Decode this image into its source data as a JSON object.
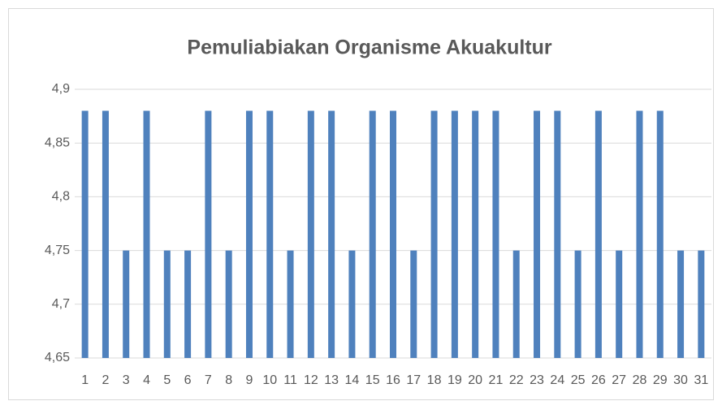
{
  "chart_data": {
    "type": "bar",
    "title": "Pemuliabiakan Organisme Akuakultur",
    "categories": [
      "1",
      "2",
      "3",
      "4",
      "5",
      "6",
      "7",
      "8",
      "9",
      "10",
      "11",
      "12",
      "13",
      "14",
      "15",
      "16",
      "17",
      "18",
      "19",
      "20",
      "21",
      "22",
      "23",
      "24",
      "25",
      "26",
      "27",
      "28",
      "29",
      "30",
      "31"
    ],
    "values": [
      4.88,
      4.88,
      4.75,
      4.88,
      4.75,
      4.75,
      4.88,
      4.75,
      4.88,
      4.88,
      4.75,
      4.88,
      4.88,
      4.75,
      4.88,
      4.88,
      4.75,
      4.88,
      4.88,
      4.88,
      4.88,
      4.75,
      4.88,
      4.88,
      4.75,
      4.88,
      4.75,
      4.88,
      4.88,
      4.75,
      4.75
    ],
    "color": "#4f81bd",
    "ylim": [
      4.65,
      4.9
    ],
    "yticks": [
      {
        "value": 4.65,
        "label": "4,65"
      },
      {
        "value": 4.7,
        "label": "4,7"
      },
      {
        "value": 4.75,
        "label": "4,75"
      },
      {
        "value": 4.8,
        "label": "4,8"
      },
      {
        "value": 4.85,
        "label": "4,85"
      },
      {
        "value": 4.9,
        "label": "4,9"
      }
    ],
    "grid": true
  }
}
